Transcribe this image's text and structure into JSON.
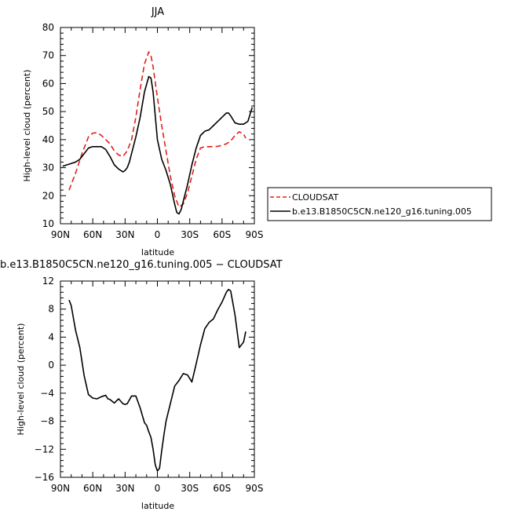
{
  "chart_data": [
    {
      "type": "line",
      "title": "JJA",
      "xlabel": "latitude",
      "ylabel": "High-level cloud (percent)",
      "xlim": [
        -90,
        90
      ],
      "ylim": [
        10,
        80
      ],
      "xticks": [
        -90,
        -60,
        -30,
        0,
        30,
        60,
        90
      ],
      "xtick_labels": [
        "90N",
        "60N",
        "30N",
        "0",
        "30S",
        "60S",
        "90S"
      ],
      "yticks": [
        10,
        20,
        30,
        40,
        50,
        60,
        70,
        80
      ],
      "ytick_labels": [
        "10",
        "20",
        "30",
        "40",
        "50",
        "60",
        "70",
        "80"
      ],
      "legend_position": "right",
      "grid": false,
      "series": [
        {
          "name": "CLOUDSAT",
          "color": "#e0201b",
          "dash": "dashed",
          "x": [
            -82,
            -76,
            -70,
            -64,
            -60,
            -56,
            -52,
            -48,
            -44,
            -40,
            -36,
            -32,
            -28,
            -24,
            -20,
            -16,
            -12,
            -8,
            -6,
            -4,
            0,
            4,
            8,
            12,
            16,
            20,
            24,
            28,
            32,
            36,
            40,
            44,
            48,
            52,
            56,
            60,
            64,
            68,
            72,
            76,
            80,
            82
          ],
          "y": [
            22,
            28,
            35,
            41,
            42.3,
            42.5,
            41.5,
            40,
            38.5,
            36,
            34.5,
            34,
            36,
            40,
            48,
            58,
            67,
            71.3,
            70,
            66,
            55,
            45,
            36,
            27,
            20,
            16,
            17,
            21,
            27,
            33,
            37,
            37.5,
            37.5,
            37.5,
            37.6,
            38,
            38.5,
            39.5,
            41.5,
            42.8,
            42,
            40.5
          ]
        },
        {
          "name": "b.e13.B1850C5CN.ne120_g16.tuning.005",
          "color": "#000000",
          "dash": "solid",
          "x": [
            -88,
            -84,
            -80,
            -76,
            -72,
            -68,
            -64,
            -60,
            -56,
            -52,
            -48,
            -44,
            -40,
            -36,
            -32,
            -30,
            -28,
            -26,
            -24,
            -20,
            -16,
            -12,
            -8,
            -6,
            -4,
            0,
            4,
            8,
            12,
            16,
            18,
            20,
            22,
            24,
            28,
            32,
            36,
            40,
            44,
            48,
            52,
            56,
            60,
            64,
            66,
            68,
            72,
            76,
            80,
            84,
            88
          ],
          "y": [
            30.5,
            31,
            31.5,
            32,
            33,
            35,
            37,
            37.5,
            37.5,
            37.5,
            36.5,
            34,
            31,
            29.5,
            28.5,
            29,
            30,
            32,
            35,
            41,
            48,
            57,
            62.5,
            62,
            57,
            40,
            33,
            29,
            24,
            17,
            14,
            13.5,
            15,
            18,
            24,
            31,
            37,
            41.5,
            43,
            43.5,
            45,
            46.5,
            48,
            49.5,
            49.5,
            48.5,
            46,
            45.5,
            45.5,
            46.5,
            51.5
          ]
        }
      ]
    },
    {
      "type": "line",
      "title": "b.e13.B1850C5CN.ne120_g16.tuning.005 − CLOUDSAT",
      "xlabel": "latitude",
      "ylabel": "High-level cloud (percent)",
      "xlim": [
        -90,
        90
      ],
      "ylim": [
        -16,
        12
      ],
      "xticks": [
        -90,
        -60,
        -30,
        0,
        30,
        60,
        90
      ],
      "xtick_labels": [
        "90N",
        "60N",
        "30N",
        "0",
        "30S",
        "60S",
        "90S"
      ],
      "yticks": [
        -16,
        -12,
        -8,
        -4,
        0,
        4,
        8,
        12
      ],
      "ytick_labels": [
        "−16",
        "−12",
        "−8",
        "−4",
        "0",
        "4",
        "8",
        "12"
      ],
      "grid": false,
      "series": [
        {
          "color": "#000000",
          "dash": "solid",
          "x": [
            -82,
            -80,
            -76,
            -72,
            -68,
            -64,
            -60,
            -56,
            -52,
            -48,
            -46,
            -44,
            -40,
            -36,
            -32,
            -30,
            -28,
            -24,
            -20,
            -16,
            -12,
            -10,
            -8,
            -6,
            -4,
            -2,
            0,
            2,
            4,
            6,
            8,
            12,
            16,
            20,
            24,
            28,
            32,
            36,
            40,
            44,
            48,
            52,
            56,
            60,
            64,
            66,
            68,
            72,
            76,
            80,
            82
          ],
          "y": [
            9.3,
            8.5,
            5,
            2.5,
            -1.5,
            -4.2,
            -4.7,
            -4.8,
            -4.5,
            -4.3,
            -4.8,
            -4.9,
            -5.4,
            -4.8,
            -5.5,
            -5.6,
            -5.5,
            -4.4,
            -4.4,
            -6.1,
            -8.2,
            -8.6,
            -9.5,
            -10.3,
            -12,
            -14.2,
            -15.1,
            -14.7,
            -12.2,
            -10,
            -8,
            -5.5,
            -3,
            -2.2,
            -1.2,
            -1.4,
            -2.4,
            0.2,
            2.9,
            5.2,
            6.1,
            6.6,
            7.9,
            9,
            10.4,
            10.8,
            10.6,
            7.2,
            2.5,
            3.3,
            4.8
          ]
        }
      ]
    }
  ],
  "legend": {
    "items": [
      {
        "label": "CLOUDSAT",
        "color": "#e0201b",
        "dash": "dashed"
      },
      {
        "label": "b.e13.B1850C5CN.ne120_g16.tuning.005",
        "color": "#000000",
        "dash": "solid"
      }
    ]
  }
}
